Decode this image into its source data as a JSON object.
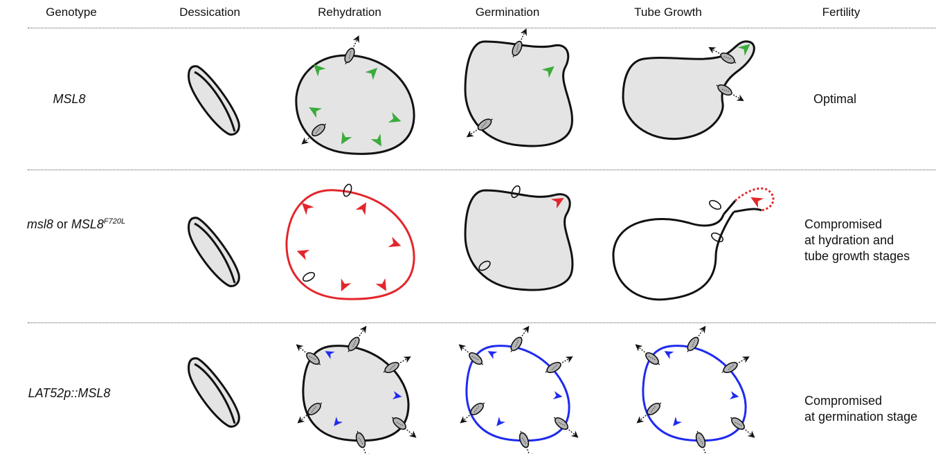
{
  "header": {
    "genotype": "Genotype",
    "dessication": "Dessication",
    "rehydration": "Rehydration",
    "germination": "Germination",
    "tube_growth": "Tube Growth",
    "fertility": "Fertility"
  },
  "rows": [
    {
      "genotype": "MSL8",
      "fertility_lines": [
        "Optimal"
      ]
    },
    {
      "genotype_a": "msl8",
      "genotype_or": " or ",
      "genotype_b": "MSL8",
      "genotype_sup": "F720L",
      "fertility_lines": [
        "Compromised",
        "at hydration and",
        "tube growth stages"
      ]
    },
    {
      "genotype": "LAT52p::MSL8",
      "fertility_lines": [
        "Compromised",
        "at germination stage"
      ]
    }
  ],
  "colors": {
    "outline": "#111111",
    "fill": "#e4e4e4",
    "green_arrow": "#3cab3c",
    "red": "#e3262b",
    "blue": "#1f2bef",
    "channel": "#b5b5b5"
  }
}
